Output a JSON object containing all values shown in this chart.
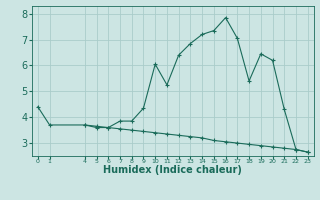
{
  "xlabel": "Humidex (Indice chaleur)",
  "ylabel": "",
  "bg_color": "#cce5e3",
  "grid_color": "#aaccca",
  "line_color": "#1a6b5a",
  "series1_x": [
    0,
    1,
    4,
    5,
    6,
    7,
    8,
    9,
    10,
    11,
    12,
    13,
    14,
    15,
    16,
    17,
    18,
    19,
    20,
    21,
    22,
    23
  ],
  "series1_y": [
    4.4,
    3.7,
    3.7,
    3.6,
    3.6,
    3.85,
    3.85,
    4.35,
    6.05,
    5.25,
    6.4,
    6.85,
    7.2,
    7.35,
    7.85,
    7.05,
    5.4,
    6.45,
    6.2,
    4.3,
    2.75,
    2.65
  ],
  "series2_x": [
    4,
    5,
    6,
    7,
    8,
    9,
    10,
    11,
    12,
    13,
    14,
    15,
    16,
    17,
    18,
    19,
    20,
    21,
    22,
    23
  ],
  "series2_y": [
    3.7,
    3.65,
    3.6,
    3.55,
    3.5,
    3.45,
    3.4,
    3.35,
    3.3,
    3.25,
    3.2,
    3.1,
    3.05,
    3.0,
    2.95,
    2.9,
    2.85,
    2.8,
    2.75,
    2.65
  ],
  "xlim": [
    -0.5,
    23.5
  ],
  "ylim": [
    2.5,
    8.3
  ],
  "yticks": [
    3,
    4,
    5,
    6,
    7,
    8
  ],
  "xticks": [
    0,
    1,
    4,
    5,
    6,
    7,
    8,
    9,
    10,
    11,
    12,
    13,
    14,
    15,
    16,
    17,
    18,
    19,
    20,
    21,
    22,
    23
  ],
  "marker": "+",
  "xlabel_fontsize": 7,
  "ytick_fontsize": 7,
  "xtick_fontsize": 4.5
}
